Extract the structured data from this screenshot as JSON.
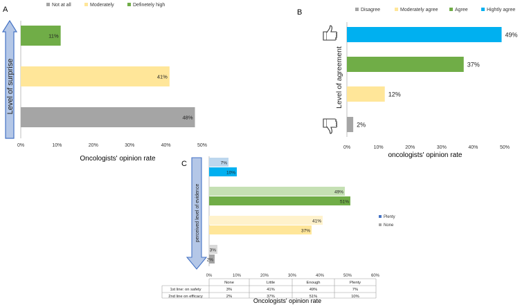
{
  "chart_data": [
    {
      "panel": "A",
      "type": "bar",
      "orientation": "horizontal",
      "title": "",
      "xlabel": "Oncologists' opinion rate",
      "ylabel": "Level of surprise",
      "xlim": [
        0,
        50
      ],
      "x_ticks": [
        "0%",
        "10%",
        "20%",
        "30%",
        "40%",
        "50%"
      ],
      "legend": [
        "Not at all",
        "Moderately",
        "Definetely high"
      ],
      "legend_colors": [
        "#a5a5a5",
        "#ffe699",
        "#70ad47"
      ],
      "categories": [
        "Definetely high",
        "Moderately",
        "Not at all"
      ],
      "values": [
        11,
        41,
        48
      ],
      "labels": [
        "11%",
        "41%",
        "48%"
      ],
      "colors": [
        "#70ad47",
        "#ffe699",
        "#a5a5a5"
      ]
    },
    {
      "panel": "B",
      "type": "bar",
      "orientation": "horizontal",
      "title": "",
      "xlabel": "oncologists' opinion rate",
      "ylabel": "Level of agreement",
      "xlim": [
        0,
        50
      ],
      "x_ticks": [
        "0%",
        "10%",
        "20%",
        "30%",
        "40%",
        "50%"
      ],
      "legend": [
        "Disagree",
        "Moderately agree",
        "Agree",
        "Hightly agree"
      ],
      "legend_colors": [
        "#a5a5a5",
        "#ffe699",
        "#70ad47",
        "#00b0f0"
      ],
      "categories": [
        "Hightly agree",
        "Agree",
        "Moderately agree",
        "Disagree"
      ],
      "values": [
        49,
        37,
        12,
        2
      ],
      "labels": [
        "49%",
        "37%",
        "12%",
        "2%"
      ],
      "colors": [
        "#00b0f0",
        "#70ad47",
        "#ffe699",
        "#a5a5a5"
      ]
    },
    {
      "panel": "C",
      "type": "bar",
      "orientation": "horizontal",
      "title": "",
      "xlabel": "Oncologists' opinion rate",
      "ylabel": "perceived level of evidence",
      "xlim": [
        0,
        60
      ],
      "x_ticks": [
        "0%",
        "10%",
        "20%",
        "30%",
        "40%",
        "50%",
        "60%"
      ],
      "legend": [
        "Plenty",
        "None"
      ],
      "legend_colors": [
        "#4472c4",
        "#a5a5a5"
      ],
      "categories": [
        "Plenty",
        "Enough",
        "Little",
        "None"
      ],
      "series": [
        {
          "name": "1st line: on safety",
          "values": [
            7,
            49,
            41,
            3
          ],
          "labels": [
            "7%",
            "49%",
            "41%",
            "3%"
          ],
          "colors": [
            "#bdd7ee",
            "#c5e0b4",
            "#fff2cc",
            "#d9d9d9"
          ]
        },
        {
          "name": "2nd line on efficacy",
          "values": [
            10,
            51,
            37,
            2
          ],
          "labels": [
            "10%",
            "51%",
            "37%",
            "2%"
          ],
          "colors": [
            "#00b0f0",
            "#70ad47",
            "#ffe699",
            "#a5a5a5"
          ]
        }
      ],
      "table": {
        "header": [
          "None",
          "Little",
          "Enough",
          "Plenty"
        ],
        "rows": [
          {
            "label": "1st line: on safety",
            "cells": [
              "3%",
              "41%",
              "49%",
              "7%"
            ]
          },
          {
            "label": "2nd line on efficacy",
            "cells": [
              "2%",
              "37%",
              "51%",
              "10%"
            ]
          }
        ]
      }
    }
  ],
  "panel_letters": {
    "a": "A",
    "b": "B",
    "c": "C"
  },
  "icons": {
    "up": "thumbs-up-icon",
    "down": "thumbs-down-icon"
  }
}
